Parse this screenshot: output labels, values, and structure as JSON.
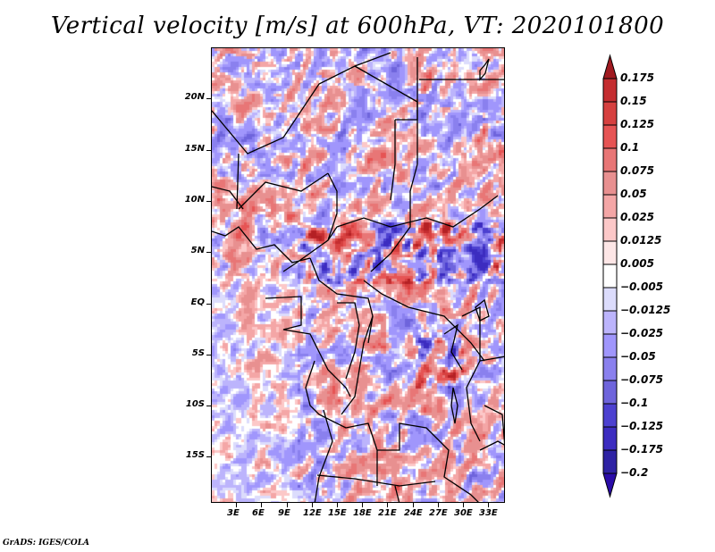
{
  "title": "Vertical velocity [m/s] at 600hPa, VT: 2020101800",
  "credit": "GrADS: IGES/COLA",
  "map": {
    "region": "Central Africa",
    "lat_range": [
      -19.5,
      25
    ],
    "lon_range": [
      0,
      35
    ],
    "y_ticks": [
      {
        "label": "20N",
        "lat": 20
      },
      {
        "label": "15N",
        "lat": 15
      },
      {
        "label": "10N",
        "lat": 10
      },
      {
        "label": "5N",
        "lat": 5
      },
      {
        "label": "EQ",
        "lat": 0
      },
      {
        "label": "5S",
        "lat": -5
      },
      {
        "label": "10S",
        "lat": -10
      },
      {
        "label": "15S",
        "lat": -15
      }
    ],
    "x_ticks": [
      {
        "label": "3E",
        "lon": 3
      },
      {
        "label": "6E",
        "lon": 6
      },
      {
        "label": "9E",
        "lon": 9
      },
      {
        "label": "12E",
        "lon": 12
      },
      {
        "label": "15E",
        "lon": 15
      },
      {
        "label": "18E",
        "lon": 18
      },
      {
        "label": "21E",
        "lon": 21
      },
      {
        "label": "24E",
        "lon": 24
      },
      {
        "label": "27E",
        "lon": 27
      },
      {
        "label": "30E",
        "lon": 30
      },
      {
        "label": "33E",
        "lon": 33
      }
    ]
  },
  "colorbar": {
    "levels": [
      "0.175",
      "0.15",
      "0.125",
      "0.1",
      "0.075",
      "0.05",
      "0.025",
      "0.0125",
      "0.005",
      "-0.005",
      "-0.0125",
      "-0.025",
      "-0.05",
      "-0.075",
      "-0.1",
      "-0.125",
      "-0.175",
      "-0.2"
    ],
    "colors": [
      "#b42024",
      "#c42d30",
      "#d6403f",
      "#e65454",
      "#e87676",
      "#e89090",
      "#f4a6a6",
      "#fcc8c8",
      "#fde6e6",
      "#ffffff",
      "#dcdcfc",
      "#bcb4fc",
      "#a096fc",
      "#8a80ee",
      "#6e64dc",
      "#4c40d0",
      "#3c2cc0",
      "#2e22a4"
    ],
    "top_arrow_color": "#a01a20",
    "bottom_arrow_color": "#2a0ca8"
  }
}
